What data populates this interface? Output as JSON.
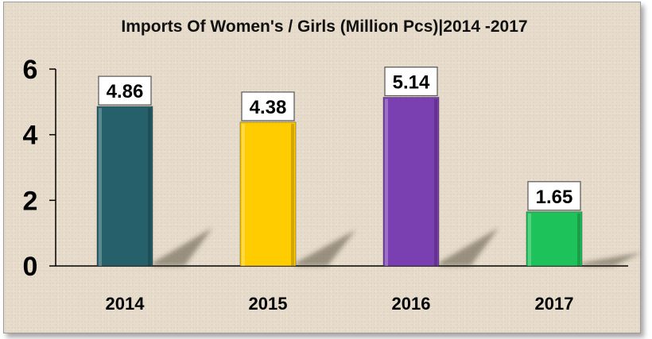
{
  "chart_data": {
    "type": "bar",
    "title": "Imports Of Women's / Girls (Million Pcs)|2014 -2017",
    "categories": [
      "2014",
      "2015",
      "2016",
      "2017"
    ],
    "values": [
      4.86,
      4.38,
      5.14,
      1.65
    ],
    "data_labels": [
      "4.86",
      "4.38",
      "5.14",
      "1.65"
    ],
    "colors": [
      "#26606a",
      "#ffcc00",
      "#7a3fb0",
      "#1ec25a"
    ],
    "ylim": [
      0,
      6
    ],
    "yticks": [
      "0",
      "2",
      "4",
      "6"
    ],
    "xlabel": "",
    "ylabel": "",
    "grid": false,
    "legend": "none"
  }
}
